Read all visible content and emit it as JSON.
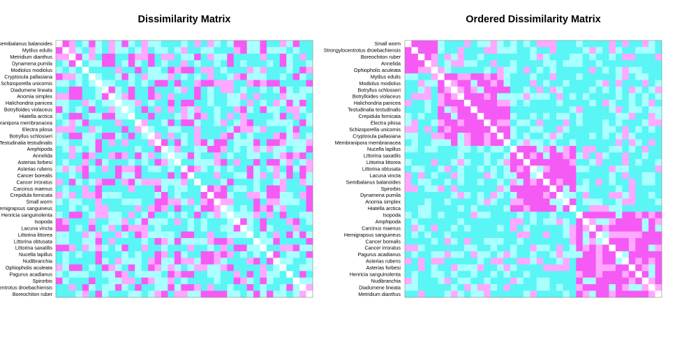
{
  "chart_data": [
    {
      "type": "heatmap",
      "title": "Dissimilarity Matrix",
      "row_labels": [
        "Semibalanus balanoides",
        "Mytilus edulis",
        "Metridium dianthus",
        "Dynamena pumila",
        "Modiolus modiolus",
        "Cryptosula pallasiana",
        "Schizoporella unicornis",
        "Diadumene lineata",
        "Anomia simplex",
        "Halichondria panicea",
        "Botrylloides violaceus",
        "Hiatella arctica",
        "Membranipora membranacea",
        "Electra pilosa",
        "Botryllus schlosseri",
        "Testudinalia testudinalis",
        "Amphipoda",
        "Annelida",
        "Asterias forbesi",
        "Asterias rubens",
        "Cancer borealis",
        "Cancer irroratus",
        "Carcinus maenus",
        "Crepidula fornicata",
        "Small worm",
        "Hemigrapsus sanguineus",
        "Henricia sanguinolenta",
        "Isopoda",
        "Lacuna vincta",
        "Littorina littorea",
        "Littorina obtusata",
        "Littorina saxatilis",
        "Nucella lapillus",
        "Nudibranchia",
        "Ophiopholis aculeata",
        "Pagurus acadianus",
        "Spirorbis",
        "Strongylocentrotus droebachiensis",
        "Boreochiton ruber"
      ],
      "grid": false,
      "colors": [
        "#f55af5",
        "#ffa8ff",
        "#aaffff",
        "#5af5f5"
      ],
      "diagonal_color": "#ffffff"
    },
    {
      "type": "heatmap",
      "title": "Ordered Dissimilarity Matrix",
      "row_labels": [
        "Small worm",
        "Strongylocentrotus droebachiensis",
        "Boreochiton ruber",
        "Annelida",
        "Ophiopholis aculeata",
        "Mytilus edulis",
        "Modiolus modiolus",
        "Botryllus schlosseri",
        "Botrylloides violaceus",
        "Halichondria panicea",
        "Testudinalia testudinalis",
        "Crepidula fornicata",
        "Electra pilosa",
        "Schizoporella unicornis",
        "Cryptosula pallasiana",
        "Membranipora membranacea",
        "Nucella lapillus",
        "Littorina saxatilis",
        "Littorina littorea",
        "Littorina obtusata",
        "Lacuna vincta",
        "Semibalanus balanoides",
        "Spirorbis",
        "Dynamena pumila",
        "Anomia simplex",
        "Hiatella arctica",
        "Isopoda",
        "Amphipoda",
        "Carcinus maenus",
        "Hemigrapsus sanguineus",
        "Cancer borealis",
        "Cancer irroratus",
        "Pagurus acadianus",
        "Asterias rubens",
        "Asterias forbesi",
        "Henricia sanguinolenta",
        "Nudibranchia",
        "Diadumene lineata",
        "Metridium dianthus"
      ],
      "grid": false,
      "colors": [
        "#f55af5",
        "#ffa8ff",
        "#aaffff",
        "#5af5f5"
      ],
      "diagonal_color": "#ffffff"
    }
  ]
}
